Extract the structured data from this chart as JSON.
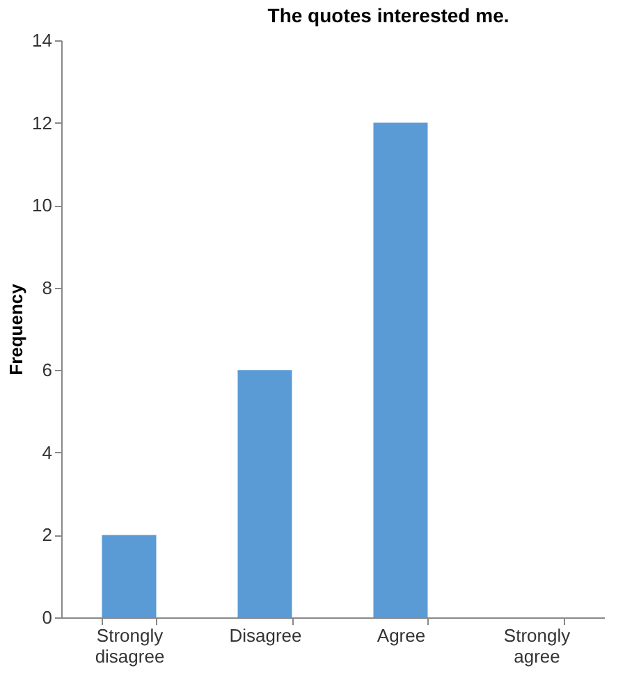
{
  "chart_data": {
    "type": "bar",
    "title": "The quotes interested me.",
    "ylabel": "Frequency",
    "categories": [
      "Strongly disagree",
      "Disagree",
      "Agree",
      "Strongly agree"
    ],
    "values": [
      2,
      6,
      12,
      0
    ],
    "color": "#5b9bd5",
    "ylim": [
      0,
      14
    ],
    "yticks": [
      0,
      2,
      4,
      6,
      8,
      10,
      12,
      14
    ],
    "grid": false
  }
}
